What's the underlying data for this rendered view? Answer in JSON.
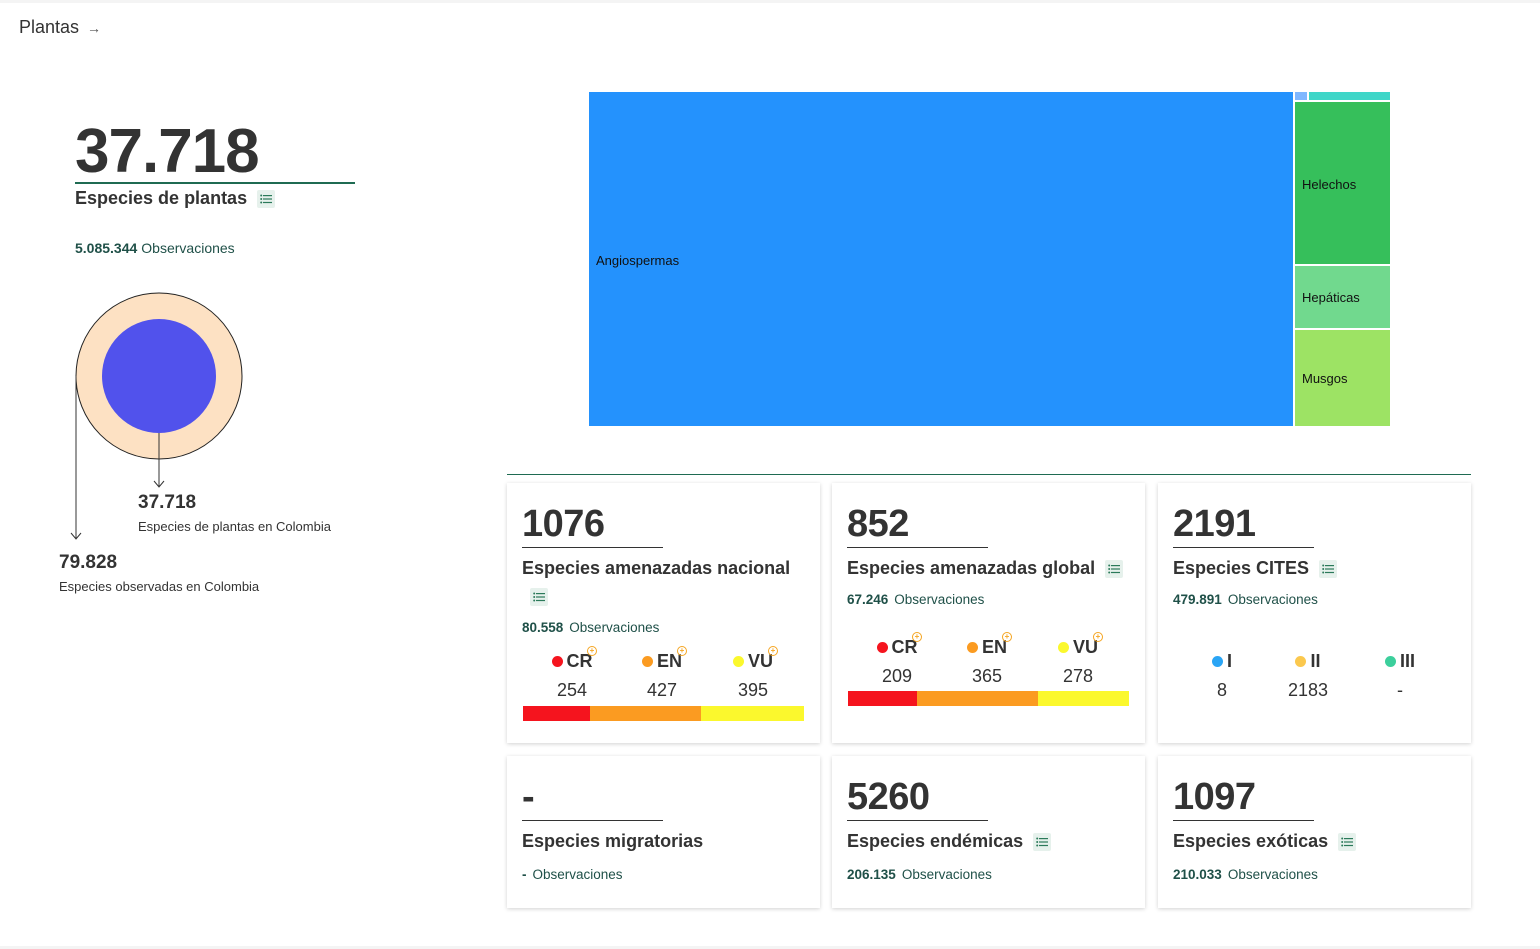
{
  "breadcrumb": {
    "label": "Plantas",
    "arrow": "→"
  },
  "hero": {
    "count": "37.718",
    "label": "Especies de plantas",
    "obs_count": "5.085.344",
    "obs_label": "Observaciones"
  },
  "venn": {
    "inner_num": "37.718",
    "inner_label": "Especies de plantas en Colombia",
    "outer_num": "79.828",
    "outer_label": "Especies observadas en Colombia",
    "colors": {
      "inner": "#5152ec",
      "outer": "#fde1c3"
    }
  },
  "treemap": {
    "cells": [
      {
        "label": "Angiospermas",
        "color": "#2492fd"
      },
      {
        "label": "Helechos",
        "color": "#36bf5b"
      },
      {
        "label": "Hepáticas",
        "color": "#71d98e"
      },
      {
        "label": "Musgos",
        "color": "#9de364"
      },
      {
        "label": "",
        "color": "#7fb7ff"
      },
      {
        "label": "",
        "color": "#3fd6c8"
      }
    ]
  },
  "cards": {
    "nacional": {
      "num": "1076",
      "title": "Especies amenazadas nacional",
      "obs_count": "80.558",
      "obs_label": "Observaciones",
      "cats": [
        {
          "code": "CR",
          "value": "254",
          "color": "#f5141e"
        },
        {
          "code": "EN",
          "value": "427",
          "color": "#fb9b21"
        },
        {
          "code": "VU",
          "value": "395",
          "color": "#fbf82d"
        }
      ]
    },
    "global": {
      "num": "852",
      "title": "Especies amenazadas global",
      "obs_count": "67.246",
      "obs_label": "Observaciones",
      "cats": [
        {
          "code": "CR",
          "value": "209",
          "color": "#f5141e"
        },
        {
          "code": "EN",
          "value": "365",
          "color": "#fb9b21"
        },
        {
          "code": "VU",
          "value": "278",
          "color": "#fbf82d"
        }
      ]
    },
    "cites": {
      "num": "2191",
      "title": "Especies CITES",
      "obs_count": "479.891",
      "obs_label": "Observaciones",
      "cats": [
        {
          "code": "I",
          "value": "8",
          "color": "#2aa5f5"
        },
        {
          "code": "II",
          "value": "2183",
          "color": "#fbc84e"
        },
        {
          "code": "III",
          "value": "-",
          "color": "#3ccf9c"
        }
      ]
    },
    "migratorias": {
      "num": "-",
      "title": "Especies migratorias",
      "obs_count": "-",
      "obs_label": "Observaciones"
    },
    "endemicas": {
      "num": "5260",
      "title": "Especies endémicas",
      "obs_count": "206.135",
      "obs_label": "Observaciones"
    },
    "exoticas": {
      "num": "1097",
      "title": "Especies exóticas",
      "obs_count": "210.033",
      "obs_label": "Observaciones"
    }
  }
}
